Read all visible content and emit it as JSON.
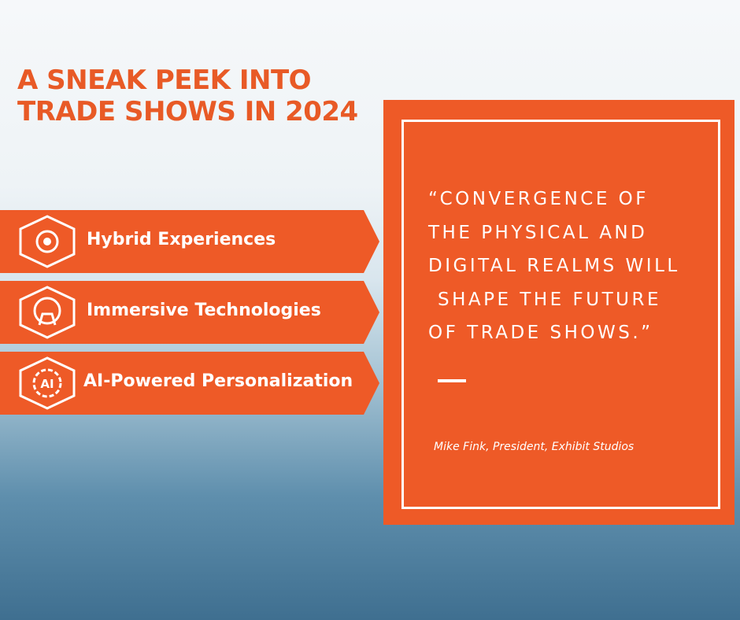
{
  "header": {
    "title_lines": [
      "A SNEAK PEEK INTO",
      "TRADE SHOWS IN 2024"
    ]
  },
  "items": [
    {
      "label": "Hybrid Experiences"
    },
    {
      "label": "Immersive Technologies"
    },
    {
      "label": "AI-Powered Personalization",
      "icon_text": "AI"
    }
  ],
  "quote": {
    "lines": [
      "“CONVERGENCE OF",
      "THE PHYSICAL AND",
      "DIGITAL REALMS WILL",
      "SHAPE THE FUTURE",
      "OF TRADE SHOWS.”"
    ],
    "attribution": "Mike Fink, President, Exhibit Studios"
  }
}
